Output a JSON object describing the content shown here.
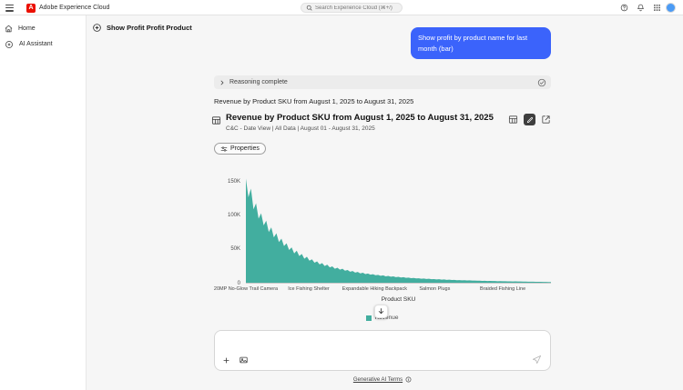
{
  "topbar": {
    "brand": "Adobe Experience Cloud",
    "search_placeholder": "Search Experience Cloud (⌘+/)"
  },
  "sidebar": {
    "items": [
      {
        "label": "Home"
      },
      {
        "label": "AI Assistant"
      }
    ]
  },
  "conversation": {
    "title": "Show Profit Profit Product",
    "user_prompt": "Show profit by product name for last month (bar)",
    "reasoning_status": "Reasoning complete",
    "assistant_message": "Revenue by Product SKU from August 1, 2025 to August 31, 2025"
  },
  "visualization": {
    "title": "Revenue by Product SKU from August 1, 2025 to August 31, 2025",
    "subtitle": "C&C - Date View | All Data | August 01 - August 31, 2025",
    "properties_label": "Properties",
    "legend_label": "Revenue"
  },
  "chart_data": {
    "type": "area",
    "title": "Revenue by Product SKU from August 1, 2025 to August 31, 2025",
    "xlabel": "Product SKU",
    "ylabel": "Revenue",
    "value_unit": "thousands",
    "ylim": [
      0,
      158
    ],
    "grid": false,
    "legend_position": "bottom",
    "y_ticks": [
      {
        "value": 150,
        "label": "150K"
      },
      {
        "value": 100,
        "label": "100K"
      },
      {
        "value": 50,
        "label": "50K"
      },
      {
        "value": 0,
        "label": "0"
      }
    ],
    "x_ticks": [
      {
        "label": "20MP No-Glow Trail Camera",
        "pos": 0.0
      },
      {
        "label": "Ice Fishing Shelter",
        "pos": 0.206
      },
      {
        "label": "Expandable Hiking Backpack",
        "pos": 0.422
      },
      {
        "label": "Salmon Plugs",
        "pos": 0.619
      },
      {
        "label": "Braided Fishing Line",
        "pos": 0.842
      }
    ],
    "series": [
      {
        "name": "Revenue",
        "color": "#42ae9f",
        "values": [
          156,
          128,
          141,
          110,
          119,
          96,
          104,
          86,
          93,
          76,
          83,
          68,
          74,
          61,
          66,
          55,
          59,
          49,
          53,
          44,
          48,
          40,
          43,
          36,
          39,
          33,
          35,
          30,
          32,
          27.5,
          29.5,
          25,
          27,
          23,
          24.5,
          21,
          22.5,
          19.5,
          21,
          18,
          19,
          16.5,
          17.5,
          15.2,
          16.2,
          14,
          15,
          13,
          13.8,
          12,
          12.8,
          11.2,
          11.8,
          10.4,
          11,
          9.6,
          10.2,
          9,
          9.5,
          8.4,
          8.9,
          7.8,
          8.3,
          7.3,
          7.7,
          6.8,
          7.2,
          6.4,
          6.7,
          6,
          6.3,
          5.6,
          5.9,
          5.3,
          5.5,
          4.9,
          5.2,
          4.6,
          4.9,
          4.3,
          4.6,
          4.1,
          4.3,
          3.8,
          4,
          3.6,
          3.8,
          3.4,
          3.5,
          3.2,
          3.3,
          3,
          3.1,
          2.8,
          2.9,
          2.6,
          2.7,
          2.5,
          2.6,
          2.3,
          2.4,
          2.2,
          2.3,
          2.1,
          2.1,
          1.9,
          2,
          1.8,
          1.8,
          1.7,
          1.7,
          1.6,
          1.6,
          1.5,
          1.4,
          1.4,
          1.3,
          1.2,
          1.2,
          1.1,
          1
        ]
      }
    ]
  },
  "composer": {
    "terms_label": "Generative AI Terms"
  }
}
